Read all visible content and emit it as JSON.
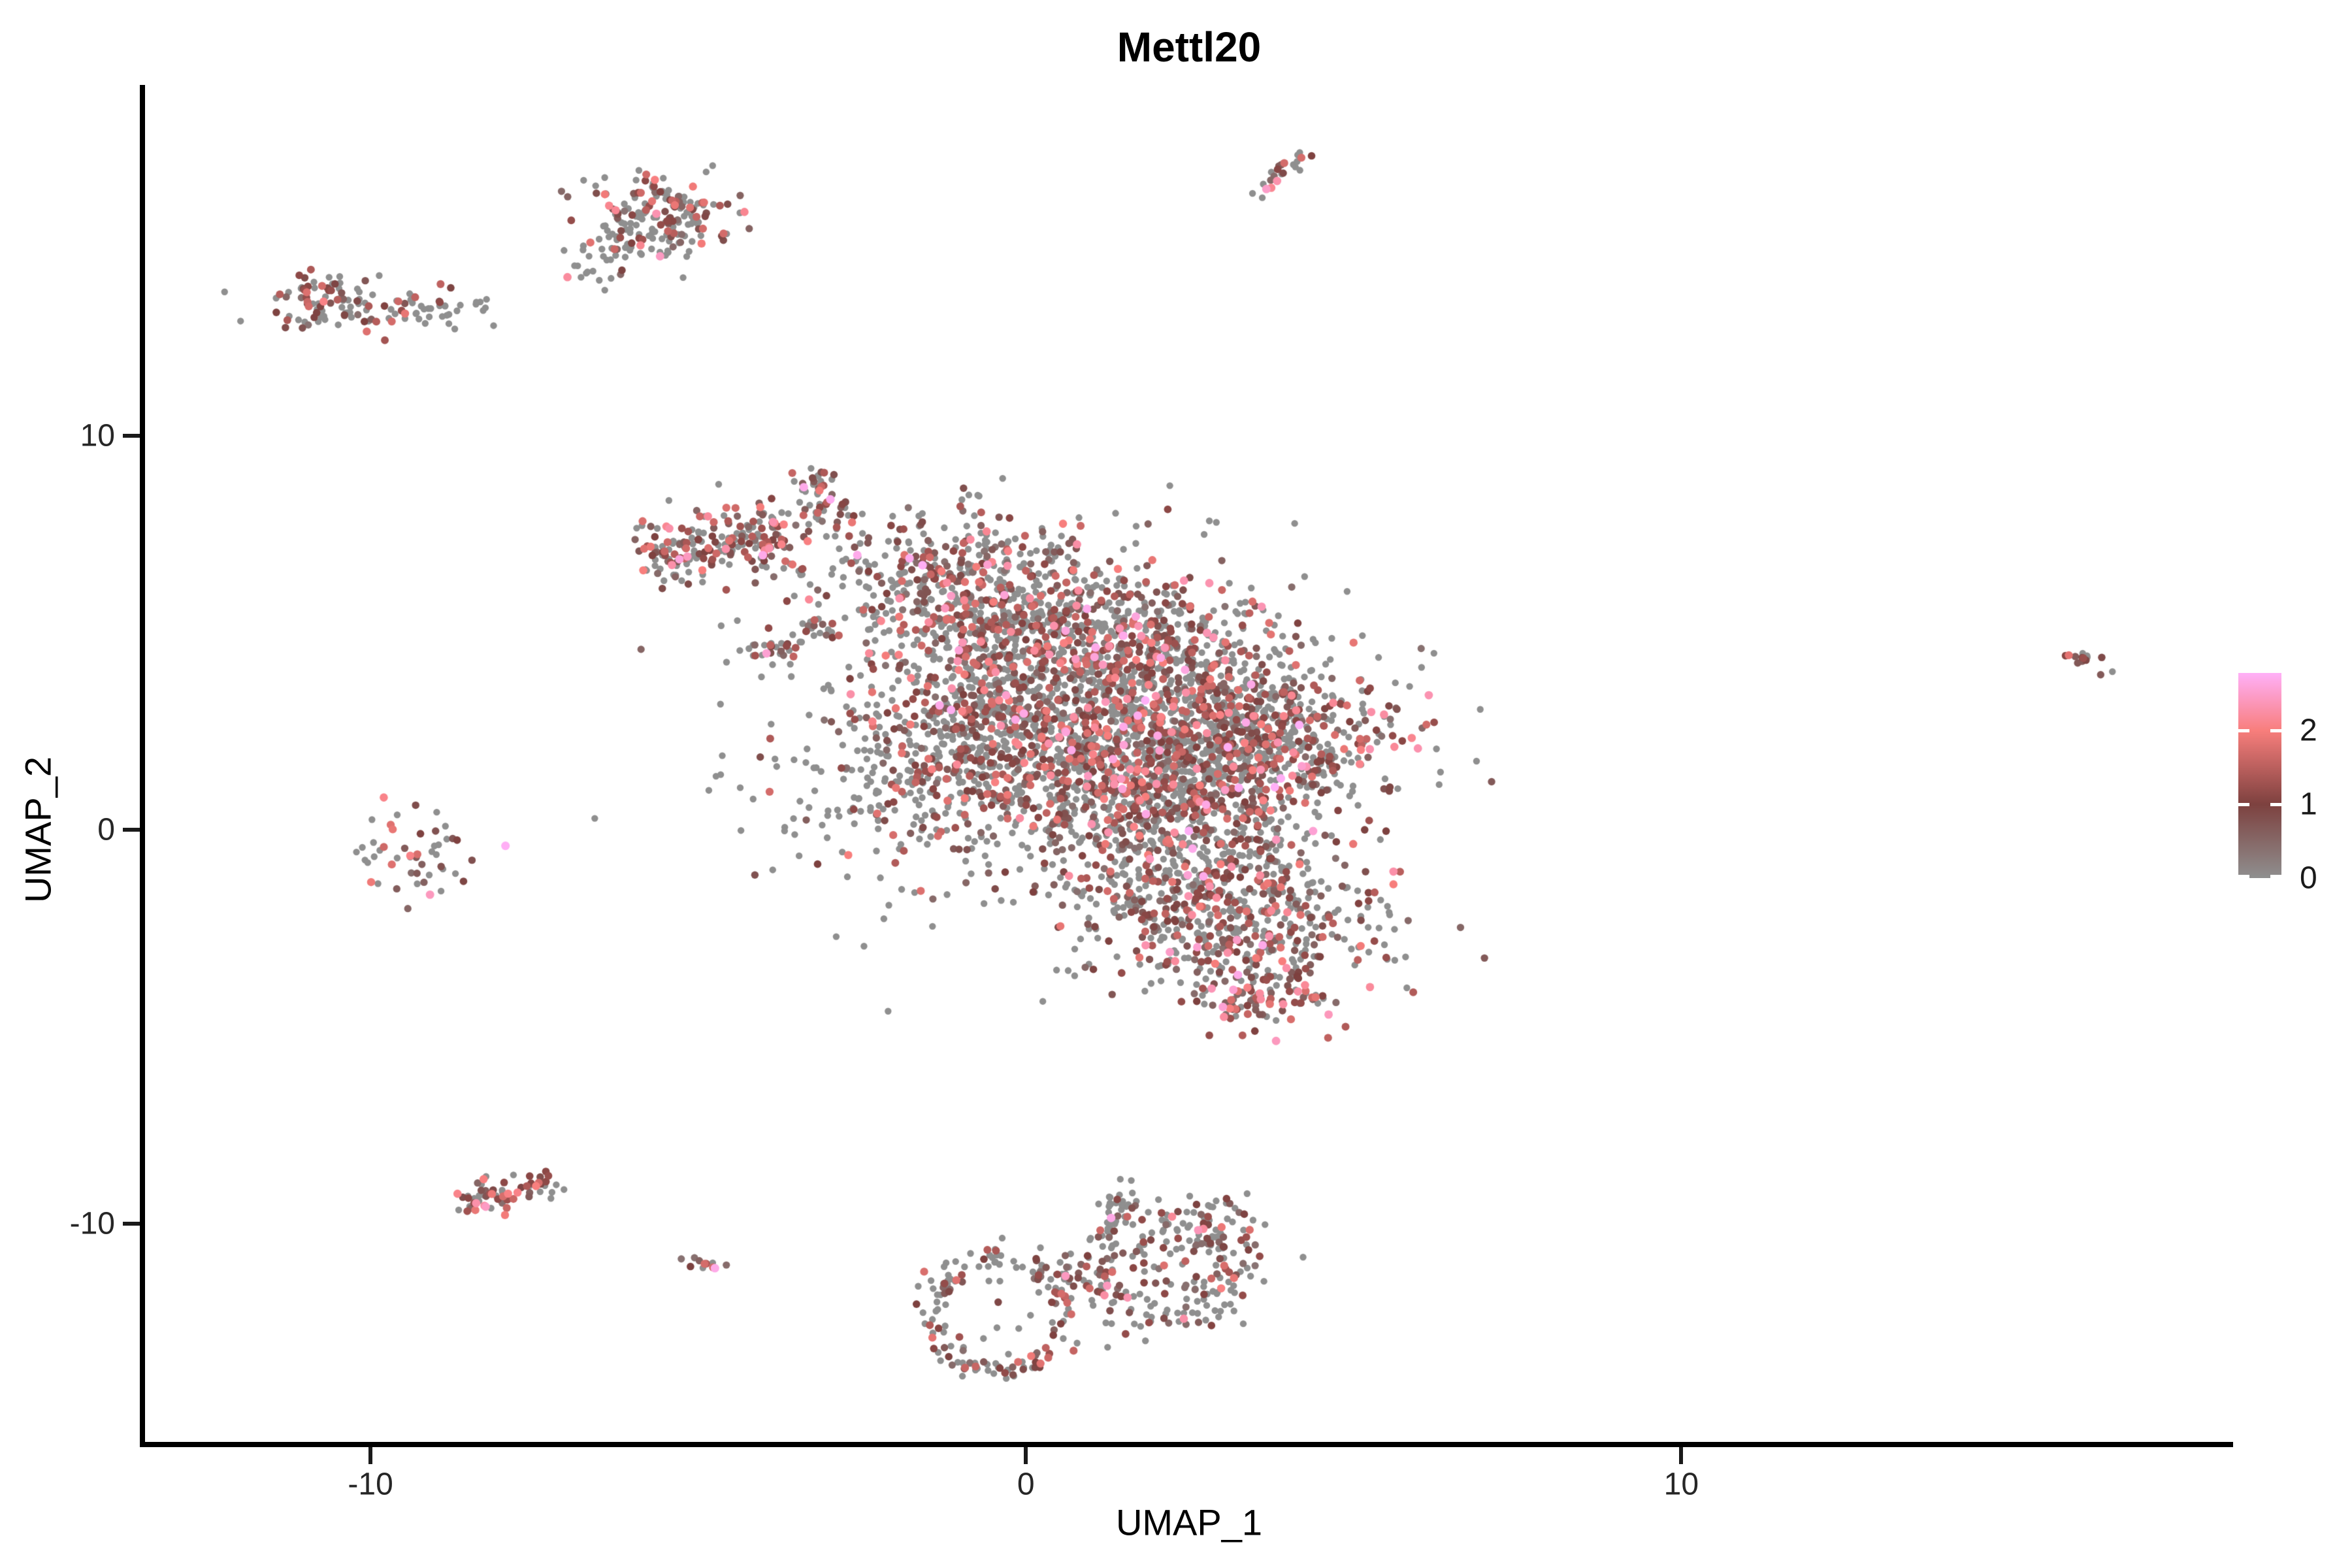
{
  "title": "Mettl20",
  "background": "#FFFFFF",
  "axes": {
    "x": {
      "label": "UMAP_1",
      "range": [
        -13.44,
        18.42
      ],
      "ticks": [
        {
          "value": -10,
          "label": "-10"
        },
        {
          "value": 0,
          "label": "0"
        },
        {
          "value": 10,
          "label": "10"
        }
      ]
    },
    "y": {
      "label": "UMAP_2",
      "range": [
        -15.54,
        18.9
      ],
      "ticks": [
        {
          "value": 10,
          "label": "10"
        },
        {
          "value": 0,
          "label": "0"
        },
        {
          "value": -10,
          "label": "-10"
        }
      ]
    }
  },
  "legend": {
    "ticks": [
      {
        "value": 2,
        "label": "2"
      },
      {
        "value": 1,
        "label": "1"
      },
      {
        "value": 0,
        "label": "0"
      }
    ]
  },
  "chart_data": {
    "type": "scatter",
    "title": "Mettl20",
    "xlabel": "UMAP_1",
    "ylabel": "UMAP_2",
    "xlim": [
      -13.44,
      18.42
    ],
    "ylim": [
      -15.54,
      18.9
    ],
    "grid": false,
    "legend_position": "right",
    "seed": 20,
    "point_radius_px": {
      "zero_expression": 5.2,
      "expressing_base": 5.4,
      "expressing_scale": 1.2
    },
    "color_scale": {
      "max_value": 2.78,
      "stops": [
        {
          "value": 0,
          "color": "#8F8F8F"
        },
        {
          "value": 1,
          "color": "#7D413F"
        },
        {
          "value": 2,
          "color": "#F87E7C"
        },
        {
          "value": 2.78,
          "color": "#FFB0F8"
        }
      ]
    },
    "expression_bands": [
      [
        0,
        0
      ],
      [
        0.35,
        1.25
      ],
      [
        1.25,
        1.9
      ],
      [
        1.9,
        2.35
      ],
      [
        2.35,
        2.78
      ]
    ],
    "default_expr_probs": [
      0.55,
      0.29,
      0.1,
      0.045,
      0.015
    ],
    "clusters": [
      {
        "name": "top-streak",
        "type": "streak",
        "from": [
          3.5,
          16.1
        ],
        "to": [
          4.25,
          17.2
        ],
        "width": 0.09,
        "count": 24,
        "expr_probs": [
          0.3,
          0.4,
          0.12,
          0.16,
          0.02
        ]
      },
      {
        "name": "top-left-blob",
        "type": "gauss",
        "center": [
          -5.5,
          15.6
        ],
        "sd": [
          0.55,
          0.5
        ],
        "count": 175,
        "expr_probs": [
          0.5,
          0.32,
          0.12,
          0.05,
          0.01
        ]
      },
      {
        "name": "top-left-tail",
        "type": "streak",
        "from": [
          -6.85,
          14.1
        ],
        "to": [
          -5.95,
          15.1
        ],
        "width": 0.28,
        "count": 40,
        "expr_probs": [
          0.72,
          0.22,
          0.05,
          0.01,
          0
        ]
      },
      {
        "name": "left-strip-dense",
        "type": "gauss",
        "center": [
          -10.55,
          13.35
        ],
        "sd": [
          0.5,
          0.32
        ],
        "count": 95,
        "expr_probs": [
          0.5,
          0.36,
          0.1,
          0.03,
          0.01
        ]
      },
      {
        "name": "left-strip-ext",
        "type": "streak",
        "from": [
          -9.7,
          13.3
        ],
        "to": [
          -8.1,
          13.2
        ],
        "width": 0.25,
        "count": 42,
        "expr_probs": [
          0.76,
          0.18,
          0.05,
          0.01,
          0
        ]
      },
      {
        "name": "mid-left-small",
        "type": "gauss",
        "center": [
          -9.45,
          -0.7
        ],
        "sd": [
          0.55,
          0.5
        ],
        "count": 50,
        "expr_probs": [
          0.42,
          0.42,
          0.1,
          0.04,
          0.02
        ]
      },
      {
        "name": "far-right-small",
        "type": "streak",
        "from": [
          15.85,
          4.55
        ],
        "to": [
          16.55,
          3.9
        ],
        "width": 0.12,
        "count": 14,
        "expr_probs": [
          0.5,
          0.42,
          0.08,
          0,
          0
        ]
      },
      {
        "name": "bottom-left-strip",
        "type": "streak",
        "from": [
          -8.6,
          -9.45
        ],
        "to": [
          -7.1,
          -8.95
        ],
        "width": 0.22,
        "count": 68,
        "expr_probs": [
          0.35,
          0.43,
          0.13,
          0.07,
          0.02
        ]
      },
      {
        "name": "tiny-dot-cluster",
        "type": "gauss",
        "center": [
          -4.82,
          -11.05
        ],
        "sd": [
          0.14,
          0.12
        ],
        "count": 11,
        "expr_probs": [
          0.25,
          0.55,
          0.1,
          0,
          0.1
        ]
      },
      {
        "name": "bottom-ring-left",
        "type": "ring",
        "center": [
          -0.4,
          -12.3
        ],
        "rx": 1.05,
        "ry": 1.45,
        "ring_sd": 0.13,
        "count": 145,
        "expr_probs": [
          0.58,
          0.32,
          0.07,
          0.02,
          0.01
        ]
      },
      {
        "name": "bottom-ring-left-inner",
        "type": "gauss",
        "center": [
          -0.4,
          -12.2
        ],
        "sd": [
          0.55,
          0.7
        ],
        "count": 14,
        "expr_probs": [
          0.7,
          0.25,
          0.05,
          0,
          0
        ]
      },
      {
        "name": "bottom-right-ring",
        "type": "ring",
        "center": [
          1.95,
          -11.1
        ],
        "rx": 1.15,
        "ry": 1.15,
        "ring_sd": 0.22,
        "count": 165,
        "expr_probs": [
          0.58,
          0.32,
          0.07,
          0.02,
          0.01
        ]
      },
      {
        "name": "bottom-right-fill",
        "type": "gauss",
        "center": [
          2.1,
          -11.2
        ],
        "sd": [
          0.8,
          0.75
        ],
        "count": 85,
        "expr_probs": [
          0.62,
          0.3,
          0.06,
          0.015,
          0.005
        ]
      },
      {
        "name": "bottom-stem",
        "type": "streak",
        "from": [
          1.3,
          -10.0
        ],
        "to": [
          1.6,
          -8.85
        ],
        "width": 0.18,
        "count": 26,
        "expr_probs": [
          0.75,
          0.2,
          0.03,
          0.02,
          0
        ]
      },
      {
        "name": "bottom-right-ext",
        "type": "streak",
        "from": [
          2.6,
          -10.4
        ],
        "to": [
          3.25,
          -9.4
        ],
        "width": 0.3,
        "count": 30,
        "expr_probs": [
          0.65,
          0.28,
          0.05,
          0.02,
          0
        ]
      },
      {
        "name": "main-arm",
        "type": "streak",
        "from": [
          -5.85,
          6.9
        ],
        "to": [
          -3.5,
          7.55
        ],
        "width": 0.42,
        "count": 210,
        "expr_probs": [
          0.42,
          0.36,
          0.13,
          0.07,
          0.02
        ]
      },
      {
        "name": "main-spike",
        "type": "streak",
        "from": [
          -2.75,
          7.6
        ],
        "to": [
          -3.3,
          9.05
        ],
        "width": 0.22,
        "count": 55,
        "expr_probs": [
          0.45,
          0.35,
          0.12,
          0.05,
          0.03
        ]
      },
      {
        "name": "main-midstreak",
        "type": "streak",
        "from": [
          -4.2,
          4.3
        ],
        "to": [
          -3.05,
          5.2
        ],
        "width": 0.18,
        "count": 40,
        "expr_probs": [
          0.45,
          0.38,
          0.1,
          0.05,
          0.02
        ]
      },
      {
        "name": "main-b1",
        "type": "gauss",
        "center": [
          -0.9,
          6.1
        ],
        "sd": [
          1.15,
          0.95
        ],
        "count": 520
      },
      {
        "name": "main-b2",
        "type": "gauss",
        "center": [
          1.2,
          4.2
        ],
        "sd": [
          1.4,
          1.1
        ],
        "count": 950
      },
      {
        "name": "main-b3",
        "type": "gauss",
        "center": [
          3.1,
          2.3
        ],
        "sd": [
          1.25,
          1.0
        ],
        "count": 850
      },
      {
        "name": "main-b4",
        "type": "gauss",
        "center": [
          1.3,
          1.2
        ],
        "sd": [
          1.35,
          1.0
        ],
        "count": 620
      },
      {
        "name": "main-b5",
        "type": "gauss",
        "center": [
          -0.7,
          2.6
        ],
        "sd": [
          0.95,
          0.95
        ],
        "count": 380
      },
      {
        "name": "main-b6",
        "type": "gauss",
        "center": [
          3.2,
          -2.3
        ],
        "sd": [
          1.15,
          0.9
        ],
        "count": 480
      },
      {
        "name": "main-b7",
        "type": "gauss",
        "center": [
          2.3,
          -0.6
        ],
        "sd": [
          1.05,
          0.85
        ],
        "count": 320
      },
      {
        "name": "main-tip",
        "type": "gauss",
        "center": [
          3.5,
          -4.2
        ],
        "sd": [
          0.5,
          0.45
        ],
        "count": 90,
        "expr_probs": [
          0.3,
          0.45,
          0.15,
          0.08,
          0.02
        ]
      },
      {
        "name": "main-left-fringe",
        "type": "gauss",
        "center": [
          -2.0,
          1.2
        ],
        "sd": [
          1.0,
          1.4
        ],
        "count": 170,
        "expr_probs": [
          0.8,
          0.15,
          0.04,
          0.01,
          0
        ]
      },
      {
        "name": "main-halo",
        "type": "gauss",
        "center": [
          0.8,
          2.6
        ],
        "sd": [
          2.6,
          2.5
        ],
        "count": 200,
        "expr_probs": [
          0.8,
          0.16,
          0.03,
          0.01,
          0
        ]
      }
    ]
  }
}
